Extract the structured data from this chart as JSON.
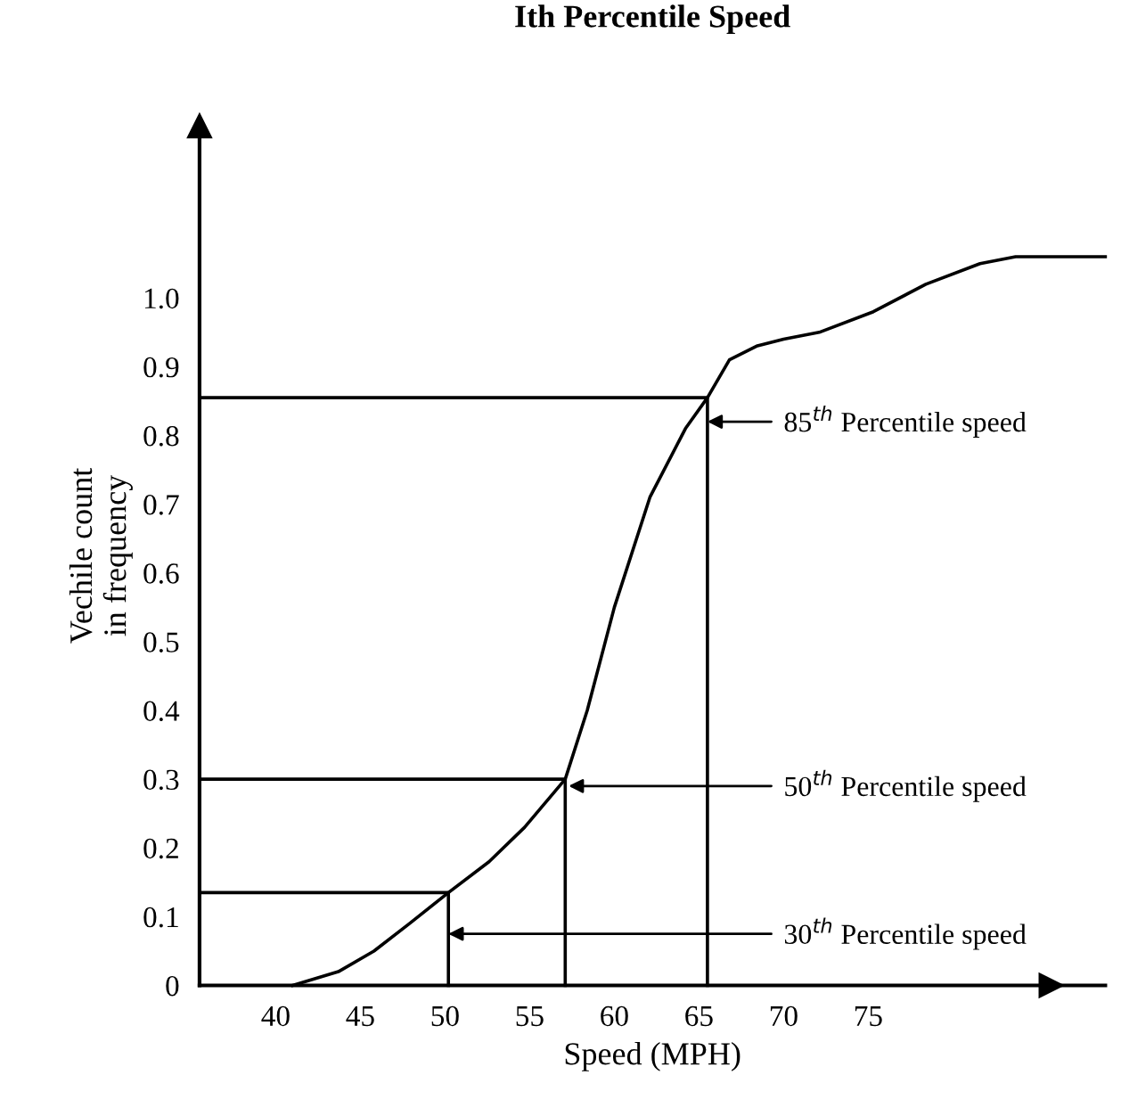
{
  "chart_data": {
    "type": "line",
    "title": "Ith Percentile Speed",
    "xlabel": "Speed (MPH)",
    "ylabel": "Vechile count\nin frequency",
    "xlim": [
      35.5,
      89
    ],
    "ylim": [
      0,
      1.25
    ],
    "xticks": [
      40,
      45,
      50,
      55,
      60,
      65,
      70,
      75
    ],
    "yticks": [
      0,
      0.1,
      0.2,
      0.3,
      0.4,
      0.5,
      0.6,
      0.7,
      0.8,
      0.9,
      {
        "value": 1.0,
        "label": "1.0"
      }
    ],
    "grid": false,
    "legend": false,
    "marker": "none",
    "line_style": "solid",
    "series": [
      {
        "color": "#000000",
        "x": [
          41,
          43.7,
          45.8,
          47.9,
          50.2,
          52.6,
          54.7,
          57.1,
          58.4,
          60,
          62.1,
          64.2,
          65.5,
          66.8,
          68.4,
          70,
          72.1,
          75.3,
          78.4,
          81.6,
          83.7,
          89
        ],
        "values": [
          0,
          0.02,
          0.05,
          0.09,
          0.135,
          0.18,
          0.23,
          0.3,
          0.4,
          0.55,
          0.71,
          0.81,
          0.855,
          0.91,
          0.93,
          0.94,
          0.95,
          0.98,
          1.02,
          1.05,
          1.06,
          1.06
        ]
      },
      {
        "color": "#000000",
        "x": [
          35.5,
          65.5,
          65.5
        ],
        "values": [
          0.855,
          0.855,
          0
        ]
      },
      {
        "color": "#000000",
        "x": [
          35.5,
          57.1,
          57.1
        ],
        "values": [
          0.3,
          0.3,
          0
        ]
      },
      {
        "color": "#000000",
        "x": [
          35.5,
          50.2,
          50.2
        ],
        "values": [
          0.135,
          0.135,
          0
        ]
      }
    ],
    "annotations": [
      {
        "text": "85$^{th}$ Percentile speed",
        "x": 65.5,
        "y": 0.82
      },
      {
        "text": "50$^{th}$ Percentile speed",
        "x": 57.3,
        "y": 0.29
      },
      {
        "text": "30$^{th}$ Percentile speed",
        "x": 50.2,
        "y": 0.075
      }
    ]
  }
}
